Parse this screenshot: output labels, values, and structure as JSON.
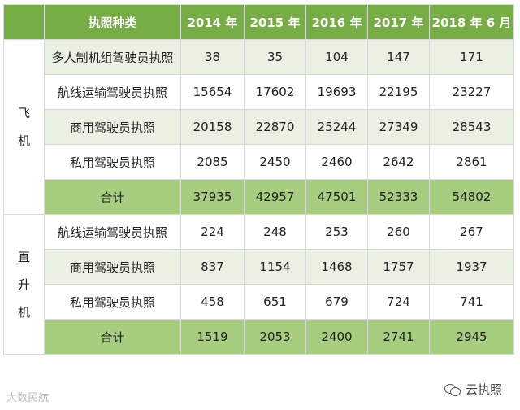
{
  "table": {
    "header": [
      "执照种类",
      "2014 年",
      "2015 年",
      "2016 年",
      "2017 年",
      "2018 年 6 月"
    ],
    "groups": [
      {
        "name_chars": [
          "飞",
          "机"
        ],
        "rows": [
          [
            "多人制机组驾驶员执照",
            "38",
            "35",
            "104",
            "147",
            "171"
          ],
          [
            "航线运输驾驶员执照",
            "15654",
            "17602",
            "19693",
            "22195",
            "23227"
          ],
          [
            "商用驾驶员执照",
            "20158",
            "22870",
            "25244",
            "27349",
            "28543"
          ],
          [
            "私用驾驶员执照",
            "2085",
            "2450",
            "2460",
            "2642",
            "2861"
          ],
          [
            "合计",
            "37935",
            "42957",
            "47501",
            "52333",
            "54802"
          ]
        ]
      },
      {
        "name_chars": [
          "直",
          "升",
          "机"
        ],
        "rows": [
          [
            "航线运输驾驶员执照",
            "224",
            "248",
            "253",
            "260",
            "267"
          ],
          [
            "商用驾驶员执照",
            "837",
            "1154",
            "1468",
            "1757",
            "1937"
          ],
          [
            "私用驾驶员执照",
            "458",
            "651",
            "679",
            "724",
            "741"
          ],
          [
            "合计",
            "1519",
            "2053",
            "2400",
            "2741",
            "2945"
          ]
        ]
      }
    ]
  },
  "footer": {
    "left_watermark": "大数民航",
    "right_brand": "云执照"
  },
  "colors": {
    "header_bg": "#76ad45",
    "alt_row_bg": "#eaf1e3",
    "subtotal_bg": "#a7cd7e"
  }
}
